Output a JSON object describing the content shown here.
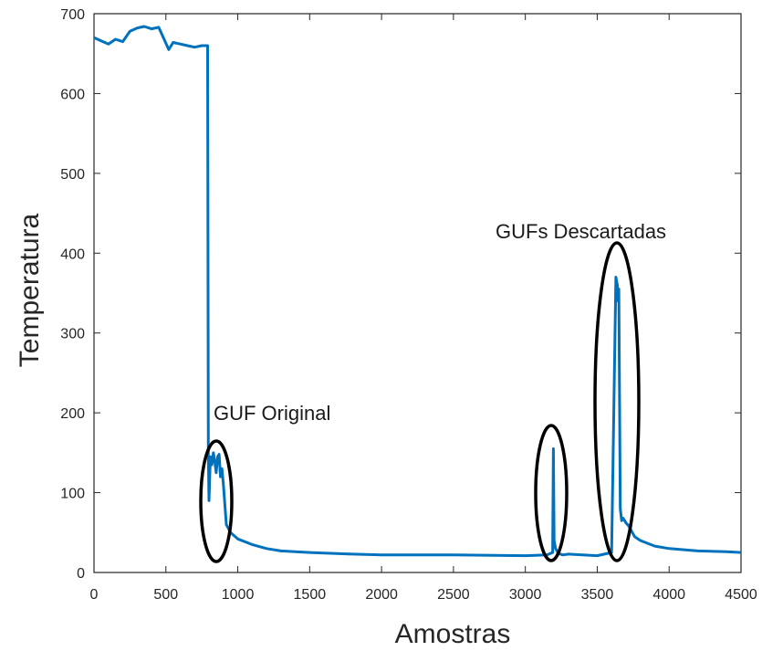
{
  "chart_data": {
    "type": "line",
    "xlabel": "Amostras",
    "ylabel": "Temperatura",
    "xlim": [
      0,
      4500
    ],
    "ylim": [
      0,
      700
    ],
    "xticks": [
      0,
      500,
      1000,
      1500,
      2000,
      2500,
      3000,
      3500,
      4000,
      4500
    ],
    "yticks": [
      0,
      100,
      200,
      300,
      400,
      500,
      600,
      700
    ],
    "grid": false,
    "series": [
      {
        "color": "#0072BD",
        "x": [
          0,
          100,
          150,
          200,
          250,
          300,
          350,
          400,
          450,
          520,
          550,
          600,
          650,
          700,
          750,
          790,
          795,
          800,
          805,
          810,
          820,
          830,
          840,
          850,
          860,
          870,
          880,
          890,
          900,
          920,
          950,
          1000,
          1100,
          1200,
          1300,
          1500,
          1800,
          2000,
          2500,
          3000,
          3150,
          3190,
          3195,
          3200,
          3210,
          3230,
          3260,
          3300,
          3400,
          3500,
          3600,
          3630,
          3640,
          3645,
          3650,
          3660,
          3670,
          3680,
          3700,
          3720,
          3760,
          3800,
          3900,
          4000,
          4200,
          4400,
          4500
        ],
        "y": [
          670,
          662,
          668,
          665,
          678,
          682,
          684,
          681,
          683,
          655,
          664,
          662,
          660,
          658,
          660,
          660,
          150,
          90,
          120,
          145,
          135,
          150,
          140,
          125,
          145,
          148,
          120,
          130,
          110,
          60,
          50,
          42,
          35,
          30,
          27,
          25,
          23,
          22,
          22,
          21,
          22,
          25,
          155,
          40,
          30,
          24,
          22,
          23,
          22,
          21,
          25,
          370,
          360,
          340,
          355,
          80,
          65,
          68,
          62,
          58,
          45,
          40,
          33,
          30,
          27,
          26,
          25
        ]
      }
    ],
    "annotations": [
      {
        "text": "GUF Original"
      },
      {
        "text": "GUFs Descartadas"
      }
    ]
  }
}
